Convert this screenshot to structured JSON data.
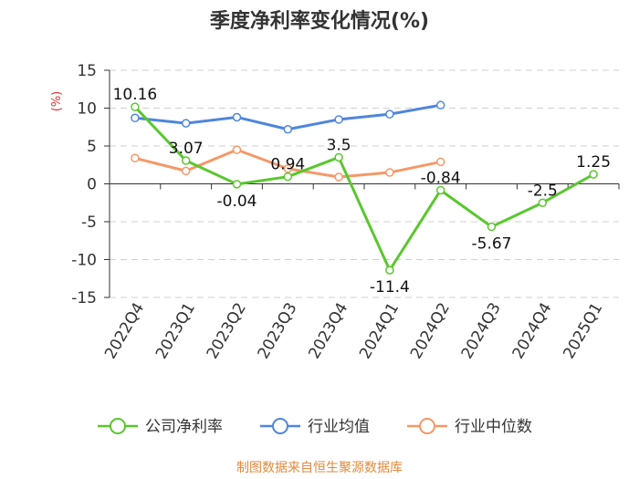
{
  "chart_data": {
    "type": "line",
    "title": "季度净利率变化情况(%)",
    "ylabel": "(%)",
    "xlabel": "",
    "ylim": [
      -15,
      15
    ],
    "yticks": [
      15,
      10,
      5,
      0,
      -5,
      -10,
      -15
    ],
    "categories": [
      "2022Q4",
      "2023Q1",
      "2023Q2",
      "2023Q3",
      "2023Q4",
      "2024Q1",
      "2024Q2",
      "2024Q3",
      "2024Q4",
      "2025Q1"
    ],
    "grid": true,
    "legend_position": "bottom",
    "series": [
      {
        "name": "公司净利率",
        "color": "#5ac72e",
        "values": [
          10.16,
          3.07,
          -0.04,
          0.94,
          3.5,
          -11.4,
          -0.84,
          -5.67,
          -2.5,
          1.25
        ],
        "labels": [
          "10.16",
          "3.07",
          "-0.04",
          "0.94",
          "3.5",
          "-11.4",
          "-0.84",
          "-5.67",
          "-2.5",
          "1.25"
        ]
      },
      {
        "name": "行业均值",
        "color": "#4f86dc",
        "values": [
          8.7,
          8.0,
          8.8,
          7.2,
          8.5,
          9.2,
          10.4,
          null,
          null,
          null
        ]
      },
      {
        "name": "行业中位数",
        "color": "#f59868",
        "values": [
          3.4,
          1.7,
          4.5,
          2.0,
          0.9,
          1.5,
          2.9,
          null,
          null,
          null
        ]
      }
    ],
    "source": "制图数据来自恒生聚源数据库",
    "source_color": "#e08a3c",
    "ylabel_color": "#e0322f"
  }
}
